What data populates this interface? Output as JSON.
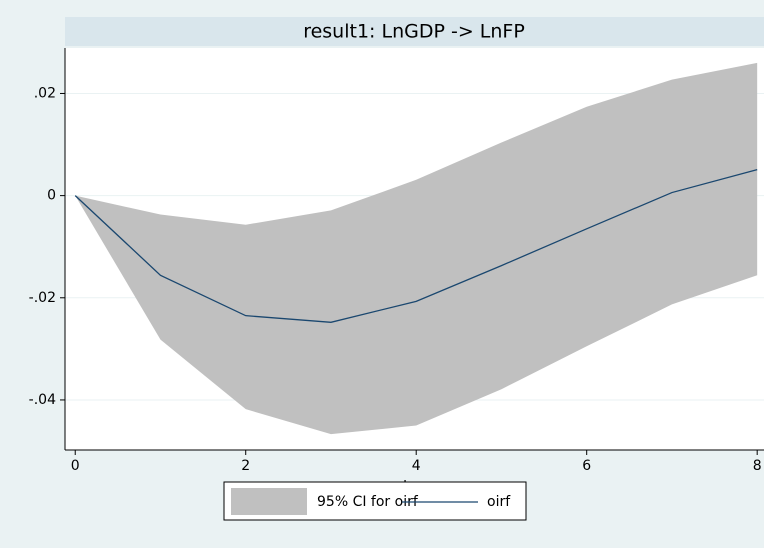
{
  "chart_data": {
    "type": "line",
    "title": "result1: LnGDP -> LnFP",
    "xlabel": "step",
    "x": [
      0,
      1,
      2,
      3,
      4,
      5,
      6,
      7,
      8
    ],
    "series": [
      {
        "name": "95% CI for oirf",
        "color": "#c0c0c0",
        "lower": [
          0,
          -0.0282,
          -0.0418,
          -0.0467,
          -0.045,
          -0.0379,
          -0.0295,
          -0.0213,
          -0.0156
        ],
        "upper": [
          0,
          -0.0037,
          -0.0057,
          -0.0029,
          0.0031,
          0.0104,
          0.0174,
          0.0227,
          0.026
        ]
      },
      {
        "name": "oirf",
        "color": "#1a476f",
        "values": [
          0,
          -0.0156,
          -0.0235,
          -0.0248,
          -0.0207,
          -0.0137,
          -0.0065,
          0.0006,
          0.0051
        ]
      }
    ],
    "xlim": [
      -0.12,
      8.08
    ],
    "xticks": [
      0,
      2,
      4,
      6,
      8
    ],
    "ylim": [
      -0.0498,
      0.0289
    ],
    "yticks": [
      {
        "value": -0.04,
        "label": "-.04"
      },
      {
        "value": -0.02,
        "label": "-.02"
      },
      0,
      {
        "value": 0.02,
        "label": ".02"
      }
    ],
    "grid": true
  }
}
